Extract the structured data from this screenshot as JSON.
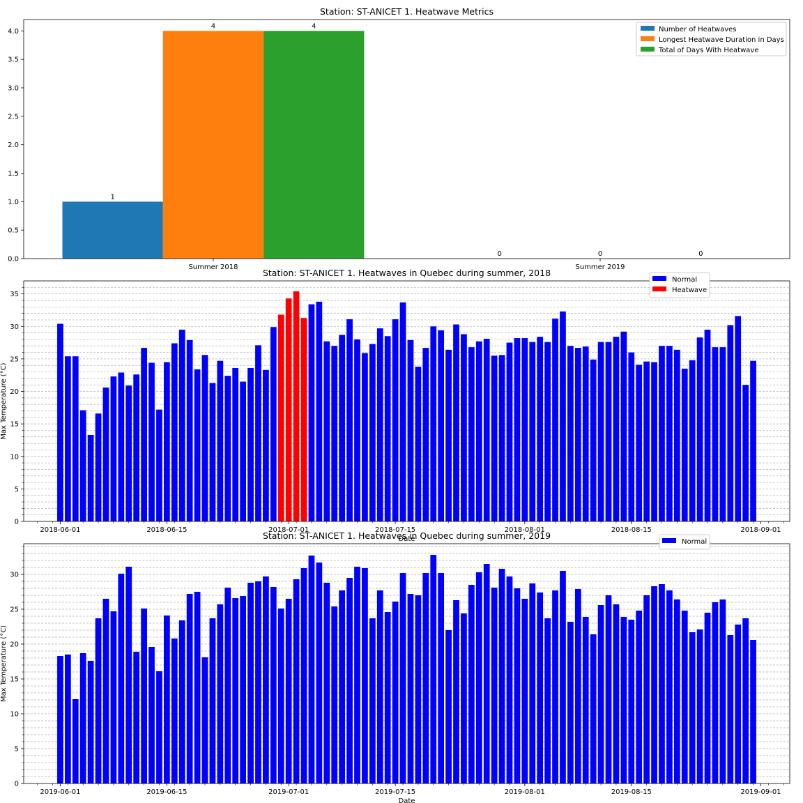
{
  "chart_data": [
    {
      "type": "bar",
      "title": "Station: ST-ANICET 1. Heatwave Metrics",
      "xlabel": "",
      "ylabel": "",
      "categories": [
        "Summer 2018",
        "Summer 2019"
      ],
      "series": [
        {
          "name": "Number of Heatwaves",
          "values": [
            1,
            0
          ],
          "color": "#1f77b4"
        },
        {
          "name": "Longest Heatwave Duration in Days",
          "values": [
            4,
            0
          ],
          "color": "#ff7f0e"
        },
        {
          "name": "Total of Days With Heatwave",
          "values": [
            4,
            0
          ],
          "color": "#2ca02c"
        }
      ],
      "data_labels": [
        [
          "1",
          "0"
        ],
        [
          "4",
          "0"
        ],
        [
          "4",
          "0"
        ]
      ],
      "ylim": [
        0,
        4.2
      ],
      "yticks": [
        "0.0",
        "0.5",
        "1.0",
        "1.5",
        "2.0",
        "2.5",
        "3.0",
        "3.5",
        "4.0"
      ],
      "grid": false,
      "legend": "top-right"
    },
    {
      "type": "bar",
      "title": "Station: ST-ANICET 1. Heatwaves in Quebec during summer, 2018",
      "xlabel": "Date",
      "ylabel": "Max Temperature (°C)",
      "start_date": "2018-06-01",
      "x": [
        "2018-06-01",
        "2018-06-02",
        "2018-06-03",
        "2018-06-04",
        "2018-06-05",
        "2018-06-06",
        "2018-06-07",
        "2018-06-08",
        "2018-06-09",
        "2018-06-10",
        "2018-06-11",
        "2018-06-12",
        "2018-06-13",
        "2018-06-14",
        "2018-06-15",
        "2018-06-16",
        "2018-06-17",
        "2018-06-18",
        "2018-06-19",
        "2018-06-20",
        "2018-06-21",
        "2018-06-22",
        "2018-06-23",
        "2018-06-24",
        "2018-06-25",
        "2018-06-26",
        "2018-06-27",
        "2018-06-28",
        "2018-06-29",
        "2018-06-30",
        "2018-07-01",
        "2018-07-02",
        "2018-07-03",
        "2018-07-04",
        "2018-07-05",
        "2018-07-06",
        "2018-07-07",
        "2018-07-08",
        "2018-07-09",
        "2018-07-10",
        "2018-07-11",
        "2018-07-12",
        "2018-07-13",
        "2018-07-14",
        "2018-07-15",
        "2018-07-16",
        "2018-07-17",
        "2018-07-18",
        "2018-07-19",
        "2018-07-20",
        "2018-07-21",
        "2018-07-22",
        "2018-07-23",
        "2018-07-24",
        "2018-07-25",
        "2018-07-26",
        "2018-07-27",
        "2018-07-28",
        "2018-07-29",
        "2018-07-30",
        "2018-07-31",
        "2018-08-01",
        "2018-08-02",
        "2018-08-03",
        "2018-08-04",
        "2018-08-05",
        "2018-08-06",
        "2018-08-07",
        "2018-08-08",
        "2018-08-09",
        "2018-08-10",
        "2018-08-11",
        "2018-08-12",
        "2018-08-13",
        "2018-08-14",
        "2018-08-15",
        "2018-08-16",
        "2018-08-17",
        "2018-08-18",
        "2018-08-19",
        "2018-08-20",
        "2018-08-21",
        "2018-08-22",
        "2018-08-23",
        "2018-08-24",
        "2018-08-25",
        "2018-08-26",
        "2018-08-27",
        "2018-08-28",
        "2018-08-29",
        "2018-08-30",
        "2018-08-31"
      ],
      "values": [
        30.4,
        25.4,
        25.4,
        17.1,
        13.3,
        16.6,
        20.6,
        22.3,
        22.9,
        20.9,
        22.6,
        26.7,
        24.4,
        17.2,
        24.5,
        27.4,
        29.5,
        27.9,
        23.4,
        25.6,
        21.3,
        24.7,
        22.4,
        23.6,
        21.5,
        23.6,
        27.1,
        23.3,
        29.9,
        31.8,
        34.3,
        35.4,
        31.3,
        33.4,
        33.8,
        27.7,
        27.0,
        28.7,
        31.1,
        28.0,
        25.9,
        27.3,
        29.7,
        28.5,
        31.1,
        33.7,
        27.9,
        23.8,
        26.7,
        30.0,
        29.4,
        26.4,
        30.3,
        28.8,
        26.8,
        27.7,
        28.1,
        25.5,
        25.6,
        27.5,
        28.2,
        28.2,
        27.6,
        28.4,
        27.6,
        31.2,
        32.3,
        27.0,
        26.7,
        26.9,
        24.9,
        27.6,
        27.6,
        28.4,
        29.2,
        26.0,
        24.1,
        24.6,
        24.5,
        27.0,
        27.0,
        26.4,
        23.5,
        24.8,
        28.3,
        29.5,
        26.8,
        26.8,
        30.2,
        31.6,
        21.0,
        24.7
      ],
      "heatwave_days": [
        "2018-06-30",
        "2018-07-01",
        "2018-07-02",
        "2018-07-03"
      ],
      "series": [
        {
          "name": "Normal",
          "color": "#0000ff"
        },
        {
          "name": "Heatwave",
          "color": "#ff0000"
        }
      ],
      "xticks": [
        "2018-06-01",
        "2018-06-15",
        "2018-07-01",
        "2018-07-15",
        "2018-08-01",
        "2018-08-15",
        "2018-09-01"
      ],
      "ylim": [
        0,
        37
      ],
      "yticks": [
        "0",
        "5",
        "10",
        "15",
        "20",
        "25",
        "30",
        "35"
      ],
      "grid": true,
      "legend": "top-right"
    },
    {
      "type": "bar",
      "title": "Station: ST-ANICET 1. Heatwaves in Quebec during summer, 2019",
      "xlabel": "Date",
      "ylabel": "Max Temperature (°C)",
      "start_date": "2019-06-01",
      "x": [
        "2019-06-01",
        "2019-06-02",
        "2019-06-03",
        "2019-06-04",
        "2019-06-05",
        "2019-06-06",
        "2019-06-07",
        "2019-06-08",
        "2019-06-09",
        "2019-06-10",
        "2019-06-11",
        "2019-06-12",
        "2019-06-13",
        "2019-06-14",
        "2019-06-15",
        "2019-06-16",
        "2019-06-17",
        "2019-06-18",
        "2019-06-19",
        "2019-06-20",
        "2019-06-21",
        "2019-06-22",
        "2019-06-23",
        "2019-06-24",
        "2019-06-25",
        "2019-06-26",
        "2019-06-27",
        "2019-06-28",
        "2019-06-29",
        "2019-06-30",
        "2019-07-01",
        "2019-07-02",
        "2019-07-03",
        "2019-07-04",
        "2019-07-05",
        "2019-07-06",
        "2019-07-07",
        "2019-07-08",
        "2019-07-09",
        "2019-07-10",
        "2019-07-11",
        "2019-07-12",
        "2019-07-13",
        "2019-07-14",
        "2019-07-15",
        "2019-07-16",
        "2019-07-17",
        "2019-07-18",
        "2019-07-19",
        "2019-07-20",
        "2019-07-21",
        "2019-07-22",
        "2019-07-23",
        "2019-07-24",
        "2019-07-25",
        "2019-07-26",
        "2019-07-27",
        "2019-07-28",
        "2019-07-29",
        "2019-07-30",
        "2019-07-31",
        "2019-08-01",
        "2019-08-02",
        "2019-08-03",
        "2019-08-04",
        "2019-08-05",
        "2019-08-06",
        "2019-08-07",
        "2019-08-08",
        "2019-08-09",
        "2019-08-10",
        "2019-08-11",
        "2019-08-12",
        "2019-08-13",
        "2019-08-14",
        "2019-08-15",
        "2019-08-16",
        "2019-08-17",
        "2019-08-18",
        "2019-08-19",
        "2019-08-20",
        "2019-08-21",
        "2019-08-22",
        "2019-08-23",
        "2019-08-24",
        "2019-08-25",
        "2019-08-26",
        "2019-08-27",
        "2019-08-28",
        "2019-08-29",
        "2019-08-30",
        "2019-08-31"
      ],
      "values": [
        18.3,
        18.5,
        12.1,
        18.7,
        17.6,
        23.7,
        26.5,
        24.7,
        30.1,
        31.1,
        18.9,
        25.1,
        19.6,
        16.1,
        24.1,
        20.8,
        23.4,
        27.2,
        27.5,
        18.1,
        23.7,
        25.7,
        28.1,
        26.6,
        26.9,
        28.8,
        29.0,
        29.7,
        28.2,
        25.1,
        26.5,
        29.3,
        30.9,
        32.7,
        31.7,
        28.8,
        25.4,
        27.7,
        29.5,
        31.1,
        30.9,
        23.7,
        27.7,
        24.6,
        26.1,
        30.2,
        27.2,
        27.0,
        30.2,
        32.8,
        30.2,
        22.0,
        26.3,
        24.4,
        28.5,
        30.3,
        31.5,
        28.1,
        30.8,
        29.7,
        28.0,
        26.5,
        28.7,
        27.4,
        23.7,
        27.7,
        30.5,
        23.2,
        27.9,
        23.9,
        21.4,
        25.6,
        27.0,
        25.7,
        23.9,
        23.5,
        24.8,
        27.0,
        28.3,
        28.6,
        27.7,
        26.4,
        24.8,
        21.7,
        22.1,
        24.5,
        26.0,
        26.4,
        21.3,
        22.8,
        23.7,
        20.6
      ],
      "series": [
        {
          "name": "Normal",
          "color": "#0000ff"
        }
      ],
      "xticks": [
        "2019-06-01",
        "2019-06-15",
        "2019-07-01",
        "2019-07-15",
        "2019-08-01",
        "2019-08-15",
        "2019-09-01"
      ],
      "ylim": [
        0,
        34.4
      ],
      "yticks": [
        "0",
        "5",
        "10",
        "15",
        "20",
        "25",
        "30"
      ],
      "grid": true,
      "legend": "top-right"
    }
  ]
}
